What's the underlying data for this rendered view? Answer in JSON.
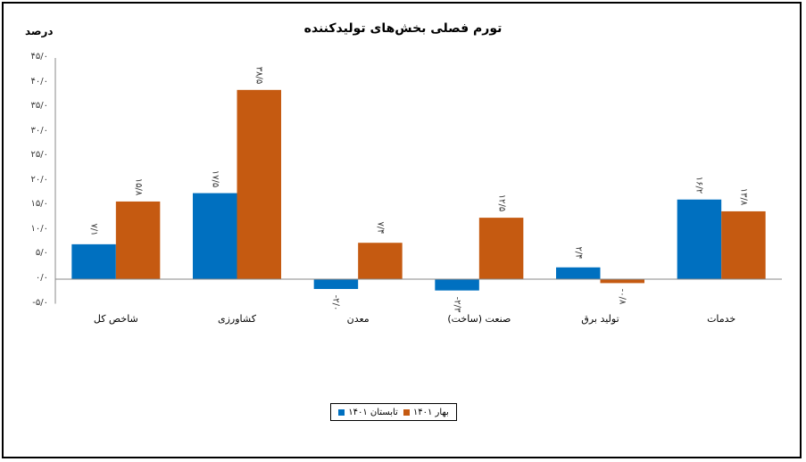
{
  "chart_data": {
    "type": "bar",
    "title": "تورم فصلی بخش‌های تولیدکننده",
    "ylabel": "درصد",
    "xlabel": "",
    "ylim": [
      -5,
      45
    ],
    "y_ticks": [
      "۴۵/۰",
      "۴۰/۰",
      "۳۵/۰",
      "۳۰/۰",
      "۲۵/۰",
      "۲۰/۰",
      "۱۵/۰",
      "۱۰/۰",
      "۵/۰",
      "۰/۰",
      "-۵/۰"
    ],
    "y_tick_values": [
      45,
      40,
      35,
      30,
      25,
      20,
      15,
      10,
      5,
      0,
      -5
    ],
    "categories": [
      "شاخص کل",
      "کشاورزی",
      "معدن",
      "صنعت (ساخت)",
      "تولید برق",
      "خدمات"
    ],
    "series": [
      {
        "name": "تابستان ۱۴۰۱",
        "color": "#0070C0",
        "values": [
          7.1,
          17.5,
          -2.0,
          -2.3,
          2.4,
          16.2
        ],
        "labels": [
          "۷/۱",
          "۱۷/۵",
          "-۲/۰",
          "-۲/۳",
          "۲/۴",
          "۱۶/۲"
        ]
      },
      {
        "name": "بهار ۱۴۰۱",
        "color": "#C55A11",
        "values": [
          15.8,
          38.5,
          7.4,
          12.5,
          -0.8,
          13.8
        ],
        "labels": [
          "۱۵/۸",
          "۳۸/۵",
          "۷/۴",
          "۱۲/۵",
          "-۰/۸",
          "۱۳/۸"
        ]
      }
    ],
    "grid": false,
    "legend_position": "bottom"
  }
}
